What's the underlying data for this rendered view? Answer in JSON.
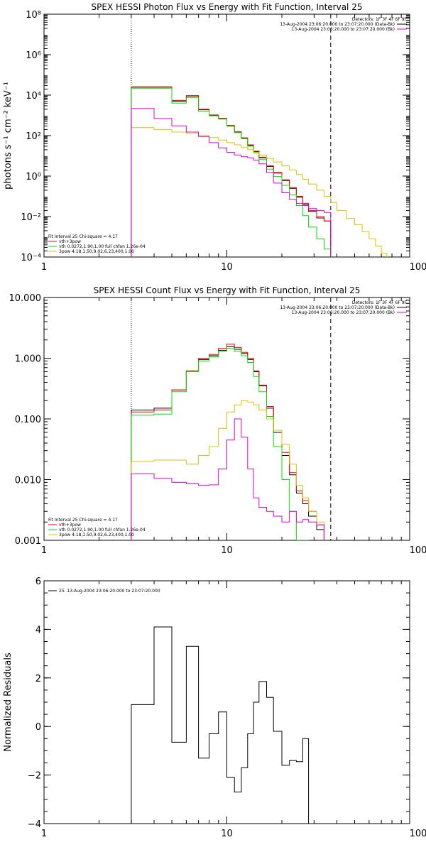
{
  "chart_data": [
    {
      "type": "line",
      "title": "SPEX HESSI Photon Flux vs Energy with Fit Function, Interval 25",
      "ylabel": "photons s⁻¹ cm⁻² keV⁻¹",
      "xlabel": "",
      "xscale": "log",
      "yscale": "log",
      "xlim": [
        1,
        100
      ],
      "ylim": [
        0.0001,
        100000000
      ],
      "xtick_values": [
        1,
        10,
        100
      ],
      "xtick_labels": [
        "1",
        "10",
        "100"
      ],
      "ytick_values": [
        0.0001,
        0.01,
        1,
        100,
        10000,
        1000000,
        100000000
      ],
      "ytick_labels": [
        "10⁻⁴",
        "10⁻²",
        "10⁰",
        "10²",
        "10⁴",
        "10⁶",
        "10⁸"
      ],
      "vlines": [
        {
          "x": 3.0,
          "style": "dotted",
          "color": "#000000"
        },
        {
          "x": 37.0,
          "style": "dashed",
          "color": "#000000"
        }
      ],
      "legend_right": {
        "placement": "top-right",
        "header": "Detectors: 1F 3F 4F 6F 9F",
        "lines": [
          {
            "text": "13-Aug-2004 23:06:20.000 to 23:07:20.000 (Data-Bk)",
            "color": "#000000"
          },
          {
            "text": "13-Aug-2004 23:06:20.000 to 23:07:20.000 (Bk)",
            "color": "#e000e0"
          }
        ]
      },
      "legend_left": {
        "placement": "bottom-left",
        "header": "Fit Interval 25   Chi-square = 4.17",
        "lines": [
          {
            "text": "vth+3pow",
            "color": "#ff0000"
          },
          {
            "text": "vth 0.0272,1.90,1.00  full chfan 1.26e-04",
            "color": "#00e000"
          },
          {
            "text": "3pow 4.18,1.50,9.02,6.23,400,1.00",
            "color": "#e0c000"
          }
        ]
      },
      "bin_edges": [
        3.0,
        4.0,
        5.0,
        6.0,
        7.0,
        8.0,
        9.0,
        10.0,
        11.0,
        12.0,
        13.0,
        14.0,
        15.0,
        16.5,
        18.0,
        20.0,
        22.0,
        24.0,
        26.0,
        28.0,
        31.0,
        34.0,
        37.0,
        40.0,
        45.0,
        50.0,
        55.0,
        60.0,
        65.0,
        70.0,
        75.0
      ],
      "series": [
        {
          "color": "#000000",
          "values": [
            25000,
            25000,
            5000,
            9000,
            1900,
            1000,
            700,
            310,
            150,
            75,
            33,
            16,
            8,
            3.0,
            1.4,
            0.6,
            0.25,
            0.09,
            0.04,
            0.018,
            0.0085,
            0.006,
            null,
            null,
            null,
            null,
            null,
            null,
            null,
            null
          ]
        },
        {
          "color": "#ff0000",
          "values": [
            26000,
            26000,
            5500,
            9500,
            2000,
            1050,
            720,
            320,
            155,
            78,
            35,
            17,
            8.5,
            3.2,
            1.5,
            0.65,
            0.27,
            0.1,
            0.045,
            0.02,
            0.01,
            0.006,
            null,
            null,
            null,
            null,
            null,
            null,
            null,
            null
          ]
        },
        {
          "color": "#00e000",
          "values": [
            22000,
            22000,
            4000,
            7500,
            1600,
            950,
            650,
            290,
            140,
            70,
            30,
            14,
            6.5,
            2.2,
            0.95,
            0.35,
            0.12,
            0.035,
            0.011,
            0.003,
            0.0008,
            0.00025,
            null,
            null,
            null,
            null,
            null,
            null,
            null,
            null
          ]
        },
        {
          "color": "#e0c000",
          "values": [
            250,
            200,
            150,
            130,
            100,
            80,
            60,
            45,
            35,
            26,
            20,
            15,
            11,
            7.5,
            5.0,
            3.2,
            2.0,
            1.2,
            0.7,
            0.4,
            0.2,
            0.1,
            0.05,
            0.02,
            0.008,
            0.004,
            0.0018,
            0.0008,
            0.00035,
            0.00015
          ]
        },
        {
          "color": "#e000e0",
          "values": [
            2200,
            700,
            300,
            150,
            90,
            45,
            25,
            15,
            11,
            9,
            8,
            6,
            4,
            1.5,
            0.45,
            0.15,
            0.07,
            0.045,
            0.035,
            0.025,
            0.02,
            0.016,
            null,
            null,
            null,
            null,
            null,
            null,
            null,
            null
          ]
        }
      ]
    },
    {
      "type": "line",
      "title": "SPEX HESSI Count Flux vs Energy with Fit Function, Interval 25",
      "ylabel": "",
      "xlabel": "",
      "xscale": "log",
      "yscale": "log",
      "xlim": [
        1,
        100
      ],
      "ylim": [
        0.001,
        10
      ],
      "xtick_values": [
        1,
        10,
        100
      ],
      "xtick_labels": [
        "1",
        "10",
        "100"
      ],
      "ytick_values": [
        0.001,
        0.01,
        0.1,
        1,
        10
      ],
      "ytick_labels": [
        "0.001",
        "0.010",
        "0.100",
        "1.000",
        "10.000"
      ],
      "vlines": [
        {
          "x": 3.0,
          "style": "dotted",
          "color": "#000000"
        },
        {
          "x": 37.0,
          "style": "dashed",
          "color": "#000000"
        }
      ],
      "legend_right": {
        "placement": "top-right",
        "header": "Detectors: 1F 3F 4F 6F 9F",
        "lines": [
          {
            "text": "13-Aug-2004 23:06:20.000 to 23:07:20.000 (Data-Bk)",
            "color": "#000000"
          },
          {
            "text": "13-Aug-2004 23:06:20.000 to 23:07:20.000 (Bk)",
            "color": "#e000e0"
          }
        ]
      },
      "legend_left": {
        "placement": "bottom-left",
        "header": "Fit Interval 25   Chi-square = 4.17",
        "lines": [
          {
            "text": "vth+3pow",
            "color": "#ff0000"
          },
          {
            "text": "vth 0.0272,1.90,1.00  full chfan 1.26e-04",
            "color": "#00e000"
          },
          {
            "text": "3pow 4.18,1.50,9.02,6.23,400,1.00",
            "color": "#e0c000"
          }
        ]
      },
      "bin_edges": [
        3.0,
        4.0,
        5.0,
        6.0,
        7.0,
        8.0,
        9.0,
        10.0,
        11.0,
        12.0,
        13.0,
        14.0,
        15.0,
        16.5,
        18.0,
        20.0,
        22.0,
        24.0,
        26.0,
        28.0,
        31.0,
        34.0,
        37.0
      ],
      "series": [
        {
          "color": "#000000",
          "values": [
            0.14,
            0.15,
            0.3,
            0.6,
            0.95,
            1.1,
            1.35,
            1.55,
            1.4,
            1.2,
            0.95,
            0.6,
            0.35,
            0.15,
            0.06,
            0.025,
            0.012,
            0.006,
            0.004,
            0.0025,
            0.0015,
            null
          ]
        },
        {
          "color": "#ff0000",
          "values": [
            0.13,
            0.14,
            0.3,
            0.62,
            1.0,
            1.15,
            1.45,
            1.7,
            1.5,
            1.25,
            1.0,
            0.62,
            0.36,
            0.16,
            0.065,
            0.028,
            0.013,
            0.0065,
            0.0045,
            0.003,
            0.0018,
            null
          ]
        },
        {
          "color": "#00e000",
          "values": [
            0.115,
            0.12,
            0.28,
            0.6,
            0.9,
            1.05,
            1.3,
            1.45,
            1.3,
            1.1,
            0.85,
            0.5,
            0.28,
            0.11,
            0.035,
            0.01,
            0.003,
            0.001,
            0.0003,
            null,
            null,
            null
          ]
        },
        {
          "color": "#e0c000",
          "values": [
            0.02,
            0.021,
            0.021,
            0.018,
            0.025,
            0.035,
            0.07,
            0.13,
            0.17,
            0.2,
            0.19,
            0.17,
            0.14,
            0.1,
            0.065,
            0.038,
            0.018,
            0.008,
            0.005,
            0.003,
            0.002,
            null
          ]
        },
        {
          "color": "#e000e0",
          "values": [
            0.0125,
            0.0105,
            0.009,
            0.0085,
            0.008,
            0.0082,
            0.015,
            0.045,
            0.1,
            0.05,
            0.015,
            0.005,
            0.0035,
            0.003,
            0.0025,
            0.002,
            0.003,
            0.002,
            0.0022,
            0.002,
            0.0018,
            null
          ]
        }
      ]
    },
    {
      "type": "line",
      "title": "",
      "ylabel": "Normalized Residuals",
      "xlabel": "",
      "xscale": "log",
      "yscale": "linear",
      "xlim": [
        1,
        100
      ],
      "ylim": [
        -4,
        6
      ],
      "xtick_values": [
        1,
        10,
        100
      ],
      "xtick_labels": [
        "1",
        "10",
        "100"
      ],
      "ytick_values": [
        -4,
        -2,
        0,
        2,
        4,
        6
      ],
      "ytick_labels": [
        "−4",
        "−2",
        "0",
        "2",
        "4",
        "6"
      ],
      "legend_left": {
        "placement": "top-left",
        "lines": [
          {
            "text": "25. 13-Aug-2004 23:06:20.000 to 23:07:20.000",
            "color": "#000000"
          }
        ]
      },
      "bin_edges": [
        3.0,
        4.0,
        5.0,
        6.0,
        7.0,
        8.0,
        9.0,
        10.0,
        11.0,
        12.0,
        13.0,
        14.0,
        15.0,
        16.5,
        18.0,
        20.0,
        22.0,
        24.0,
        26.0,
        28.0,
        31.0,
        34.0,
        37.0
      ],
      "series": [
        {
          "color": "#000000",
          "values": [
            0.9,
            4.1,
            -0.65,
            3.3,
            -1.3,
            -0.3,
            0.6,
            -2.1,
            -2.7,
            -1.7,
            -0.3,
            1.0,
            1.85,
            1.2,
            -0.2,
            -1.6,
            -1.4,
            -1.45,
            -0.5,
            null,
            null,
            null
          ]
        }
      ]
    }
  ]
}
